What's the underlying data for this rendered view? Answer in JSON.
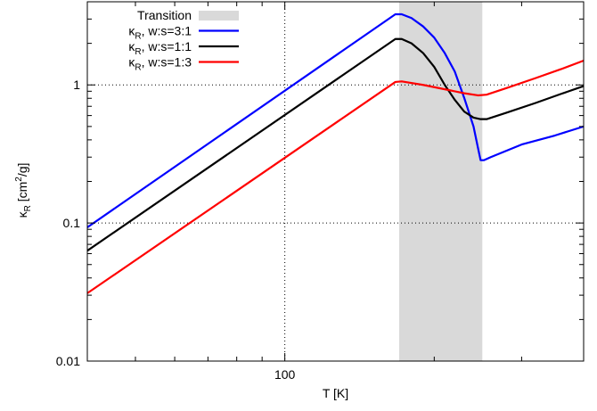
{
  "chart_data": {
    "type": "line",
    "xlabel": "T [K]",
    "ylabel": {
      "symbol": "κ",
      "sub": "R",
      "unit_pre": " [cm",
      "unit_sup": "2",
      "unit_post": "/g]"
    },
    "x_scale": "log",
    "y_scale": "log",
    "xlim": [
      40,
      400
    ],
    "ylim": [
      0.01,
      4
    ],
    "x_tick_labels": [
      {
        "value": 100,
        "label": "100"
      }
    ],
    "y_tick_labels": [
      {
        "value": 0.01,
        "label": "0.01"
      },
      {
        "value": 0.1,
        "label": "0.1"
      },
      {
        "value": 1,
        "label": "1"
      }
    ],
    "grid": "dotted at x=100, y=0.1, y=1",
    "legend_position": "top-left",
    "transition_band": {
      "name": "Transition",
      "x_range": [
        170,
        250
      ],
      "color": "#d9d9d9"
    },
    "series": [
      {
        "name": "κ_R, w:s=3:1",
        "legend": {
          "symbol": "κ",
          "sub": "R",
          "rest": ", w:s=3:1"
        },
        "color": "#0000ff",
        "points": [
          [
            40,
            0.093
          ],
          [
            167,
            3.25
          ],
          [
            172,
            3.25
          ],
          [
            180,
            3.05
          ],
          [
            190,
            2.65
          ],
          [
            200,
            2.2
          ],
          [
            210,
            1.7
          ],
          [
            220,
            1.25
          ],
          [
            230,
            0.8
          ],
          [
            240,
            0.5
          ],
          [
            245,
            0.35
          ],
          [
            248,
            0.285
          ],
          [
            252,
            0.285
          ],
          [
            260,
            0.3
          ],
          [
            300,
            0.37
          ],
          [
            350,
            0.43
          ],
          [
            400,
            0.5
          ]
        ]
      },
      {
        "name": "κ_R, w:s=1:1",
        "legend": {
          "symbol": "κ",
          "sub": "R",
          "rest": ", w:s=1:1"
        },
        "color": "#000000",
        "points": [
          [
            40,
            0.063
          ],
          [
            167,
            2.15
          ],
          [
            172,
            2.15
          ],
          [
            180,
            2.0
          ],
          [
            190,
            1.7
          ],
          [
            200,
            1.35
          ],
          [
            210,
            1.0
          ],
          [
            220,
            0.78
          ],
          [
            230,
            0.64
          ],
          [
            240,
            0.58
          ],
          [
            248,
            0.565
          ],
          [
            255,
            0.565
          ],
          [
            280,
            0.63
          ],
          [
            320,
            0.74
          ],
          [
            360,
            0.86
          ],
          [
            400,
            0.98
          ]
        ]
      },
      {
        "name": "κ_R, w:s=1:3",
        "legend": {
          "symbol": "κ",
          "sub": "R",
          "rest": ", w:s=1:3"
        },
        "color": "#ff0000",
        "points": [
          [
            40,
            0.031
          ],
          [
            167,
            1.05
          ],
          [
            172,
            1.06
          ],
          [
            190,
            1.0
          ],
          [
            210,
            0.93
          ],
          [
            230,
            0.87
          ],
          [
            245,
            0.84
          ],
          [
            255,
            0.85
          ],
          [
            280,
            0.95
          ],
          [
            320,
            1.12
          ],
          [
            360,
            1.3
          ],
          [
            400,
            1.5
          ]
        ]
      }
    ]
  }
}
